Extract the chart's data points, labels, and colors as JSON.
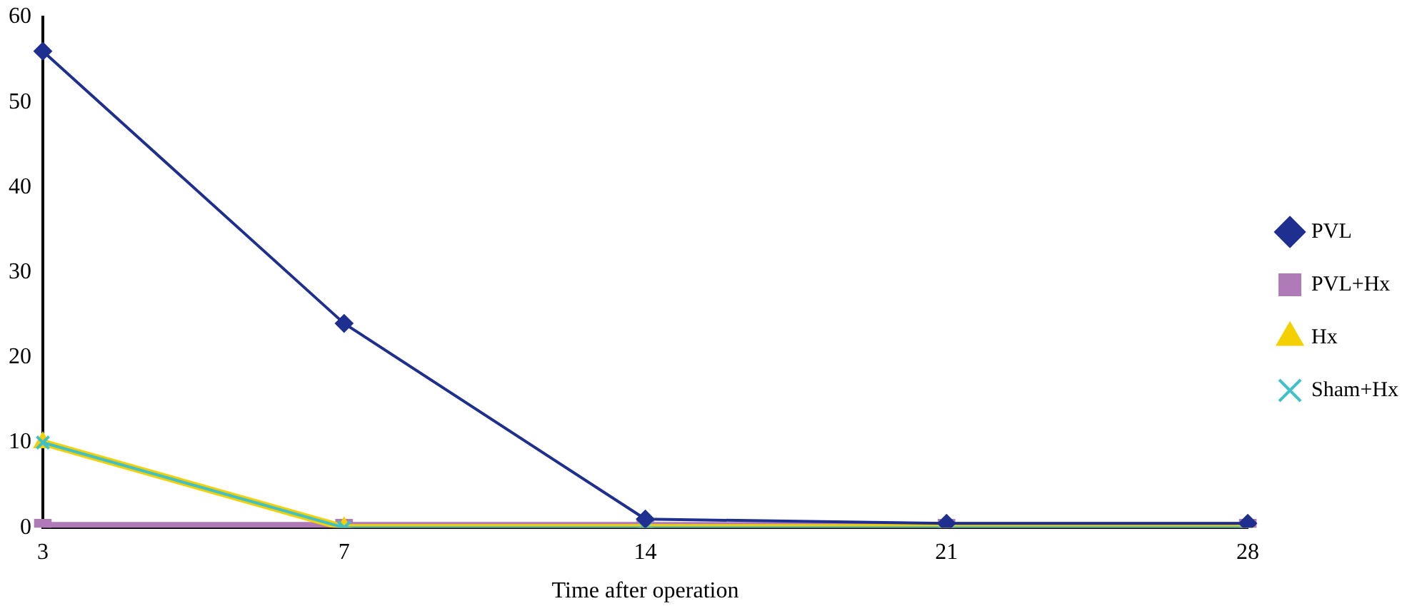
{
  "chart_data": {
    "type": "line",
    "xlabel": "Time after operation",
    "categories": [
      "3",
      "7",
      "14",
      "21",
      "28"
    ],
    "series": [
      {
        "name": "PVL",
        "color": "#1f2f8f",
        "marker": "diamond",
        "values": [
          56,
          24,
          1,
          0.5,
          0.5
        ]
      },
      {
        "name": "PVL+Hx",
        "color": "#b07ab8",
        "marker": "square",
        "values": [
          0,
          0,
          0,
          0,
          0
        ]
      },
      {
        "name": "Hx",
        "color": "#f5d000",
        "marker": "triangle",
        "values": [
          10,
          0,
          0,
          0,
          0
        ]
      },
      {
        "name": "Sham+Hx",
        "color": "#40c0c8",
        "marker": "cross",
        "values": [
          10,
          0,
          0,
          0,
          0
        ]
      }
    ],
    "ylim": [
      0,
      60
    ],
    "yticks": [
      0,
      10,
      20,
      30,
      40,
      50,
      60
    ],
    "grid": false,
    "legend": "right"
  }
}
